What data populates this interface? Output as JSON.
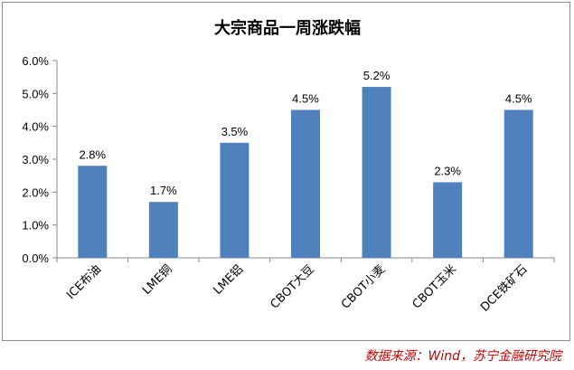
{
  "chart_data": {
    "type": "bar",
    "title": "大宗商品一周涨跌幅",
    "categories": [
      "ICE布油",
      "LME铜",
      "LME铝",
      "CBOT大豆",
      "CBOT小麦",
      "CBOT玉米",
      "DCE铁矿石"
    ],
    "values": [
      2.8,
      1.7,
      3.5,
      4.5,
      5.2,
      2.3,
      4.5
    ],
    "data_labels": [
      "2.8%",
      "1.7%",
      "3.5%",
      "4.5%",
      "5.2%",
      "2.3%",
      "4.5%"
    ],
    "y_ticks": [
      "0.0%",
      "1.0%",
      "2.0%",
      "3.0%",
      "4.0%",
      "5.0%",
      "6.0%"
    ],
    "ylim": [
      0,
      6
    ],
    "xlabel": "",
    "ylabel": "",
    "grid": false,
    "legend": "none",
    "bar_color": "#4f81bd"
  },
  "source": "数据来源：Wind，苏宁金融研究院",
  "colors": {
    "source_text": "#c00000",
    "axis": "#898989"
  }
}
